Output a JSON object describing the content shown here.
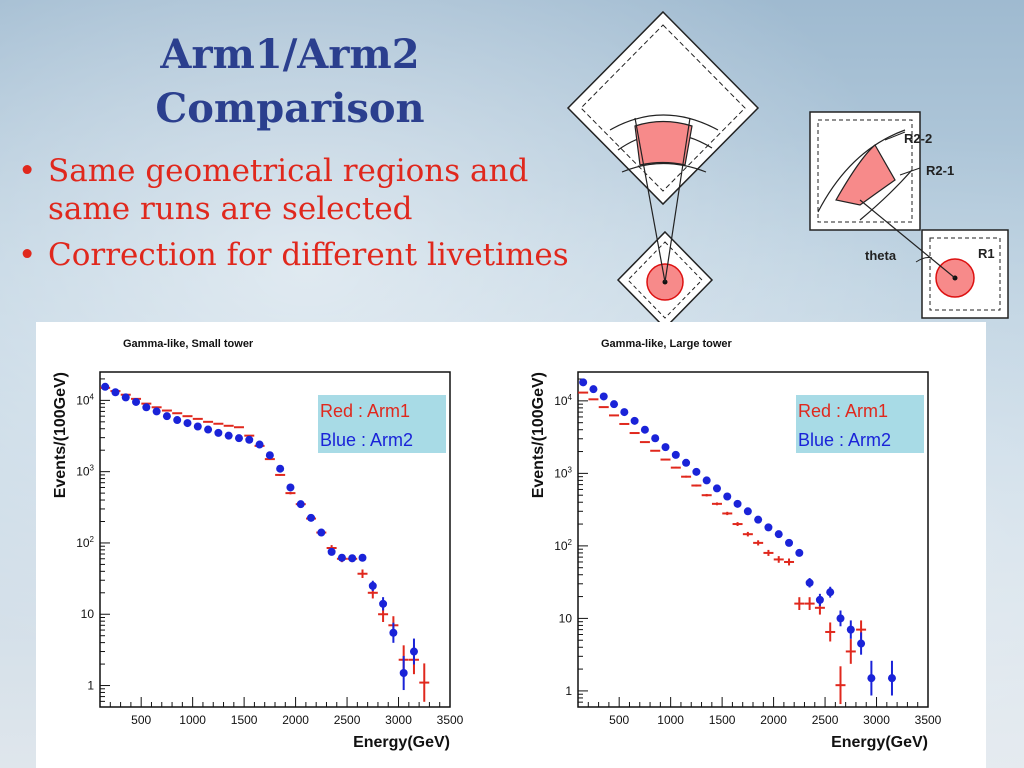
{
  "slide": {
    "title_line1": "Arm1/Arm2",
    "title_line2": "Comparison",
    "bullets": [
      "Same geometrical regions and same runs are selected",
      "Correction for different livetimes"
    ]
  },
  "diagram": {
    "labels": {
      "r2_2": "R2-2",
      "r2_1": "R2-1",
      "theta": "theta",
      "r1": "R1"
    },
    "region_color": "#f78a8a"
  },
  "colors": {
    "arm1": "#e0281d",
    "arm2": "#1a23d8",
    "legend_bg": "#a8dbe6"
  },
  "chart_data": [
    {
      "type": "scatter",
      "title": "Gamma-like, Small tower",
      "xlabel": "Energy(GeV)",
      "ylabel": "Events/(100GeV)",
      "xlim": [
        100,
        3500
      ],
      "ylog": true,
      "ylim": [
        0.5,
        25000
      ],
      "x_ticks": [
        500,
        1000,
        1500,
        2000,
        2500,
        3000,
        3500
      ],
      "y_ticks": [
        1,
        10,
        100,
        1000,
        10000
      ],
      "y_tick_labels": [
        "1",
        "10",
        "10^2",
        "10^3",
        "10^4"
      ],
      "legend": {
        "position": "top-right",
        "entries": [
          "Red : Arm1",
          "Blue : Arm2"
        ]
      },
      "series": [
        {
          "name": "Arm1",
          "color": "red",
          "marker": "cross",
          "x": [
            150,
            250,
            350,
            450,
            550,
            650,
            750,
            850,
            950,
            1050,
            1150,
            1250,
            1350,
            1450,
            1550,
            1650,
            1750,
            1850,
            1950,
            2050,
            2150,
            2250,
            2350,
            2450,
            2550,
            2650,
            2750,
            2850,
            2950,
            3050,
            3150,
            3250
          ],
          "y": [
            15000,
            13500,
            12000,
            10500,
            9000,
            8000,
            7200,
            6600,
            6000,
            5500,
            5000,
            4700,
            4400,
            4200,
            3200,
            2300,
            1500,
            900,
            500,
            350,
            220,
            140,
            85,
            60,
            60,
            37,
            20,
            10,
            7,
            2.3,
            2.3,
            1.1
          ]
        },
        {
          "name": "Arm2",
          "color": "blue",
          "marker": "dot",
          "x": [
            150,
            250,
            350,
            450,
            550,
            650,
            750,
            850,
            950,
            1050,
            1150,
            1250,
            1350,
            1450,
            1550,
            1650,
            1750,
            1850,
            1950,
            2050,
            2150,
            2250,
            2350,
            2450,
            2550,
            2650,
            2750,
            2850,
            2950,
            3050,
            3150
          ],
          "y": [
            15500,
            13000,
            11000,
            9500,
            8000,
            7000,
            6000,
            5300,
            4800,
            4300,
            3900,
            3500,
            3200,
            2950,
            2800,
            2400,
            1700,
            1100,
            600,
            350,
            225,
            140,
            75,
            62,
            61,
            62,
            25,
            14,
            5.5,
            1.5,
            3
          ]
        }
      ]
    },
    {
      "type": "scatter",
      "title": "Gamma-like, Large tower",
      "xlabel": "Energy(GeV)",
      "ylabel": "Events/(100GeV)",
      "xlim": [
        100,
        3500
      ],
      "ylog": true,
      "ylim": [
        0.6,
        25000
      ],
      "x_ticks": [
        500,
        1000,
        1500,
        2000,
        2500,
        3000,
        3500
      ],
      "y_ticks": [
        1,
        10,
        100,
        1000,
        10000
      ],
      "y_tick_labels": [
        "1",
        "10",
        "10^2",
        "10^3",
        "10^4"
      ],
      "legend": {
        "position": "top-right",
        "entries": [
          "Red : Arm1",
          "Blue : Arm2"
        ]
      },
      "series": [
        {
          "name": "Arm1",
          "color": "red",
          "marker": "cross",
          "x": [
            150,
            250,
            350,
            450,
            550,
            650,
            750,
            850,
            950,
            1050,
            1150,
            1250,
            1350,
            1450,
            1550,
            1650,
            1750,
            1850,
            1950,
            2050,
            2150,
            2250,
            2350,
            2450,
            2550,
            2650,
            2750,
            2850
          ],
          "y": [
            13000,
            10500,
            8200,
            6300,
            4800,
            3600,
            2700,
            2050,
            1550,
            1200,
            900,
            680,
            500,
            380,
            280,
            200,
            145,
            110,
            80,
            65,
            60,
            16,
            16,
            14,
            6.5,
            1.2,
            3.5,
            7
          ]
        },
        {
          "name": "Arm2",
          "color": "blue",
          "marker": "dot",
          "x": [
            150,
            250,
            350,
            450,
            550,
            650,
            750,
            850,
            950,
            1050,
            1150,
            1250,
            1350,
            1450,
            1550,
            1650,
            1750,
            1850,
            1950,
            2050,
            2150,
            2250,
            2350,
            2450,
            2550,
            2650,
            2750,
            2850,
            2950,
            3150
          ],
          "y": [
            18000,
            14500,
            11500,
            9000,
            7000,
            5300,
            4000,
            3050,
            2300,
            1800,
            1400,
            1050,
            800,
            620,
            480,
            380,
            300,
            230,
            180,
            145,
            110,
            80,
            31,
            18,
            23,
            10,
            7,
            4.5,
            1.5,
            1.5
          ]
        }
      ]
    }
  ]
}
